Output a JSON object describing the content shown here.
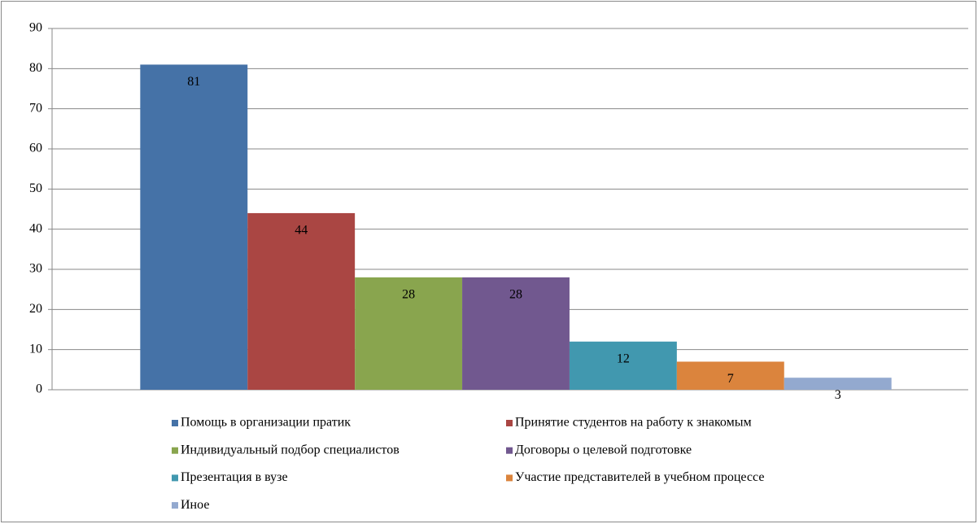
{
  "chart_data": {
    "type": "bar",
    "categories": [
      null
    ],
    "series": [
      {
        "name": "Помощь в организации пратик",
        "color": "#4572a7",
        "values": [
          81
        ]
      },
      {
        "name": "Принятие студентов на работу к знакомым",
        "color": "#aa4643",
        "values": [
          44
        ]
      },
      {
        "name": "Индивидуальный подбор специалистов",
        "color": "#89a54e",
        "values": [
          28
        ]
      },
      {
        "name": "Договоры о целевой подготовке",
        "color": "#71588f",
        "values": [
          28
        ]
      },
      {
        "name": "Презентация в вузе",
        "color": "#4198af",
        "values": [
          12
        ]
      },
      {
        "name": "Участие представителей в учебном процессе",
        "color": "#db843d",
        "values": [
          7
        ]
      },
      {
        "name": "Иное",
        "color": "#93a9cf",
        "values": [
          3
        ]
      }
    ],
    "ylim": [
      0,
      90
    ],
    "yticks": [
      0,
      10,
      20,
      30,
      40,
      50,
      60,
      70,
      80,
      90
    ],
    "grid": true
  }
}
